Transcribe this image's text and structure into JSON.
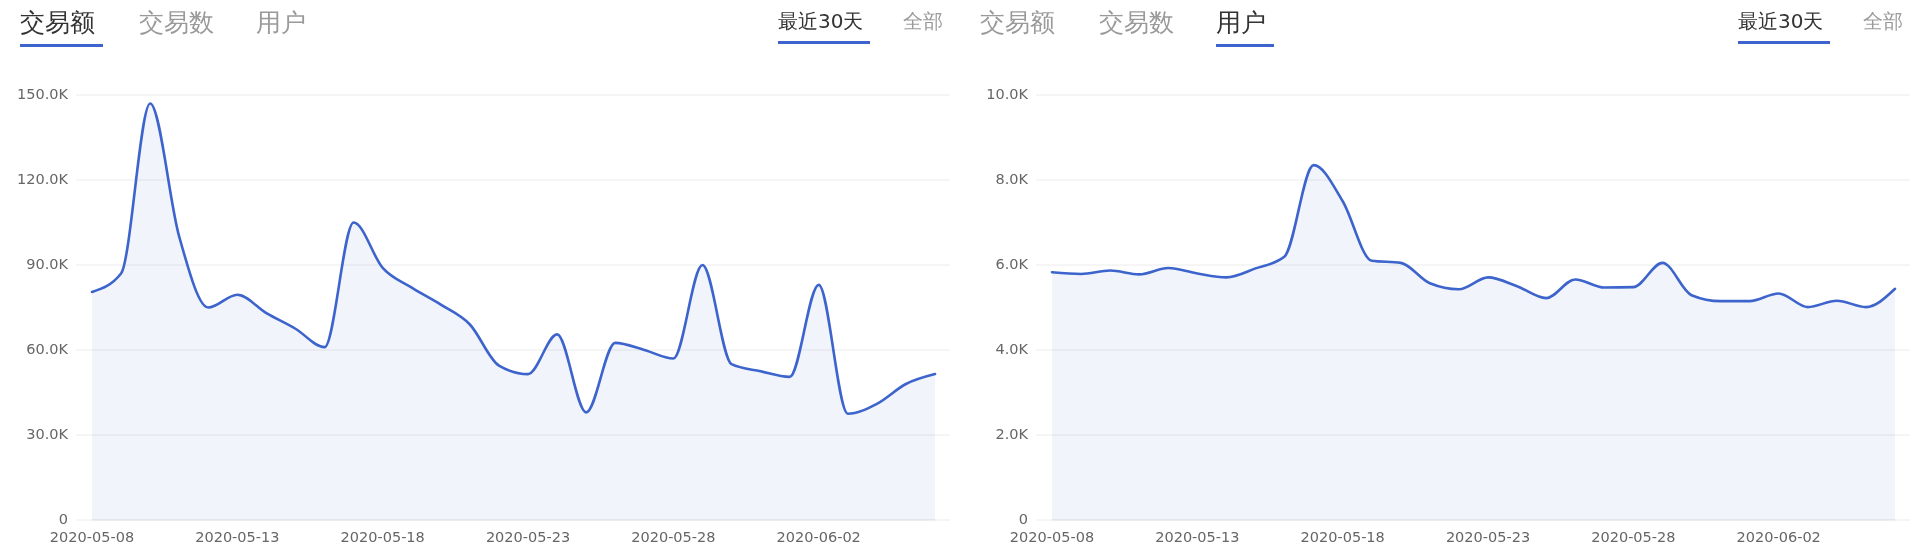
{
  "chart_data": [
    {
      "type": "area",
      "annotations": [
        "交易额",
        "交易数",
        "用户",
        "最近30天",
        "全部"
      ],
      "x": [
        "2020-05-08",
        "2020-05-09",
        "2020-05-10",
        "2020-05-11",
        "2020-05-12",
        "2020-05-13",
        "2020-05-14",
        "2020-05-15",
        "2020-05-16",
        "2020-05-17",
        "2020-05-18",
        "2020-05-19",
        "2020-05-20",
        "2020-05-21",
        "2020-05-22",
        "2020-05-23",
        "2020-05-24",
        "2020-05-25",
        "2020-05-26",
        "2020-05-27",
        "2020-05-28",
        "2020-05-29",
        "2020-05-30",
        "2020-05-31",
        "2020-06-01",
        "2020-06-02",
        "2020-06-03",
        "2020-06-04",
        "2020-06-05",
        "2020-06-06"
      ],
      "series": [
        {
          "color": "#3d64cc",
          "values": [
            80500,
            87000,
            147000,
            100000,
            75000,
            79500,
            73000,
            67500,
            61000,
            105000,
            89000,
            82000,
            76000,
            69000,
            54500,
            51500,
            65500,
            38000,
            62500,
            60000,
            57000,
            90000,
            55000,
            52500,
            50500,
            83000,
            37500,
            41000,
            48000,
            51500
          ]
        }
      ],
      "xlim": [
        "2020-05-08",
        "2020-06-06"
      ],
      "xticks": [
        "2020-05-08",
        "2020-05-13",
        "2020-05-18",
        "2020-05-23",
        "2020-05-28",
        "2020-06-02"
      ],
      "ylim": [
        0,
        150000
      ],
      "yticks": [
        0,
        {
          "value": 30000,
          "label": "30.0K"
        },
        {
          "value": 60000,
          "label": "60.0K"
        },
        {
          "value": 90000,
          "label": "90.0K"
        },
        {
          "value": 120000,
          "label": "120.0K"
        },
        {
          "value": 150000,
          "label": "150.0K"
        }
      ],
      "grid": "y"
    },
    {
      "type": "area",
      "annotations": [
        "交易额",
        "交易数",
        "用户",
        "最近30天",
        "全部"
      ],
      "x": [
        "2020-05-08",
        "2020-05-09",
        "2020-05-10",
        "2020-05-11",
        "2020-05-12",
        "2020-05-13",
        "2020-05-14",
        "2020-05-15",
        "2020-05-16",
        "2020-05-17",
        "2020-05-18",
        "2020-05-19",
        "2020-05-20",
        "2020-05-21",
        "2020-05-22",
        "2020-05-23",
        "2020-05-24",
        "2020-05-25",
        "2020-05-26",
        "2020-05-27",
        "2020-05-28",
        "2020-05-29",
        "2020-05-30",
        "2020-05-31",
        "2020-06-01",
        "2020-06-02",
        "2020-06-03",
        "2020-06-04",
        "2020-06-05",
        "2020-06-06"
      ],
      "series": [
        {
          "color": "#3d64cc",
          "values": [
            5830,
            5790,
            5870,
            5780,
            5930,
            5800,
            5710,
            5920,
            6200,
            8350,
            7500,
            6100,
            6050,
            5570,
            5430,
            5710,
            5500,
            5220,
            5660,
            5470,
            5480,
            6050,
            5290,
            5150,
            5150,
            5330,
            5010,
            5160,
            5010,
            5440
          ]
        }
      ],
      "xlim": [
        "2020-05-08",
        "2020-06-06"
      ],
      "xticks": [
        "2020-05-08",
        "2020-05-13",
        "2020-05-18",
        "2020-05-23",
        "2020-05-28",
        "2020-06-02"
      ],
      "ylim": [
        0,
        10000
      ],
      "yticks": [
        0,
        {
          "value": 2000,
          "label": "2.0K"
        },
        {
          "value": 4000,
          "label": "4.0K"
        },
        {
          "value": 6000,
          "label": "6.0K"
        },
        {
          "value": 8000,
          "label": "8.0K"
        },
        {
          "value": 10000,
          "label": "10.0K"
        }
      ],
      "grid": "y"
    }
  ]
}
